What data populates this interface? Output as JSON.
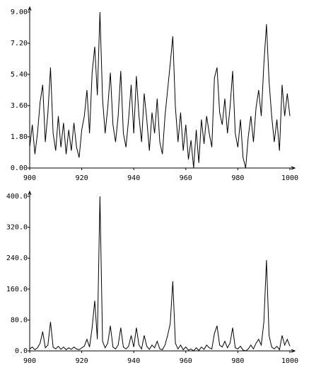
{
  "chart_data": [
    {
      "type": "line",
      "color": "#000000",
      "x": [
        900,
        901,
        902,
        903,
        904,
        905,
        906,
        907,
        908,
        909,
        910,
        911,
        912,
        913,
        914,
        915,
        916,
        917,
        918,
        919,
        920,
        921,
        922,
        923,
        924,
        925,
        926,
        927,
        928,
        929,
        930,
        931,
        932,
        933,
        934,
        935,
        936,
        937,
        938,
        939,
        940,
        941,
        942,
        943,
        944,
        945,
        946,
        947,
        948,
        949,
        950,
        951,
        952,
        953,
        954,
        955,
        956,
        957,
        958,
        959,
        960,
        961,
        962,
        963,
        964,
        965,
        966,
        967,
        968,
        969,
        970,
        971,
        972,
        973,
        974,
        975,
        976,
        977,
        978,
        979,
        980,
        981,
        982,
        983,
        984,
        985,
        986,
        987,
        988,
        989,
        990,
        991,
        992,
        993,
        994,
        995,
        996,
        997,
        998,
        999,
        1000
      ],
      "values": [
        1.2,
        2.5,
        0.8,
        2.0,
        3.8,
        4.8,
        1.5,
        3.2,
        5.8,
        2.0,
        1.0,
        3.0,
        1.2,
        2.6,
        0.8,
        2.2,
        1.0,
        2.6,
        1.2,
        0.6,
        2.2,
        3.0,
        4.5,
        2.0,
        5.5,
        7.0,
        4.2,
        9.0,
        4.0,
        2.0,
        3.5,
        5.5,
        2.5,
        1.5,
        3.0,
        5.6,
        2.0,
        1.2,
        2.8,
        4.8,
        2.0,
        5.3,
        3.0,
        1.5,
        4.3,
        2.8,
        1.0,
        3.2,
        2.0,
        4.0,
        1.5,
        0.8,
        3.0,
        4.5,
        6.0,
        7.6,
        3.5,
        1.5,
        3.2,
        1.0,
        2.5,
        0.5,
        1.6,
        0.0,
        2.2,
        0.3,
        2.8,
        1.4,
        3.0,
        2.0,
        1.2,
        5.2,
        5.8,
        3.2,
        2.5,
        4.0,
        2.0,
        3.5,
        5.6,
        2.0,
        1.2,
        2.8,
        0.6,
        0.0,
        1.8,
        3.0,
        1.5,
        3.5,
        4.5,
        3.0,
        6.0,
        8.3,
        5.0,
        3.0,
        1.5,
        2.8,
        1.0,
        4.8,
        3.0,
        4.3,
        3.0
      ],
      "xlim": [
        900,
        1000
      ],
      "xticks": [
        900,
        920,
        940,
        960,
        980,
        1000
      ],
      "ylim": [
        0,
        9
      ],
      "yticks": [
        {
          "value": 0,
          "label": "0.00"
        },
        {
          "value": 1.8,
          "label": "1.80"
        },
        {
          "value": 3.6,
          "label": "3.60"
        },
        {
          "value": 5.4,
          "label": "5.40"
        },
        {
          "value": 7.2,
          "label": "7.20"
        },
        {
          "value": 9,
          "label": "9.00"
        }
      ]
    },
    {
      "type": "line",
      "color": "#000000",
      "x": [
        900,
        901,
        902,
        903,
        904,
        905,
        906,
        907,
        908,
        909,
        910,
        911,
        912,
        913,
        914,
        915,
        916,
        917,
        918,
        919,
        920,
        921,
        922,
        923,
        924,
        925,
        926,
        927,
        928,
        929,
        930,
        931,
        932,
        933,
        934,
        935,
        936,
        937,
        938,
        939,
        940,
        941,
        942,
        943,
        944,
        945,
        946,
        947,
        948,
        949,
        950,
        951,
        952,
        953,
        954,
        955,
        956,
        957,
        958,
        959,
        960,
        961,
        962,
        963,
        964,
        965,
        966,
        967,
        968,
        969,
        970,
        971,
        972,
        973,
        974,
        975,
        976,
        977,
        978,
        979,
        980,
        981,
        982,
        983,
        984,
        985,
        986,
        987,
        988,
        989,
        990,
        991,
        992,
        993,
        994,
        995,
        996,
        997,
        998,
        999,
        1000
      ],
      "values": [
        5,
        10,
        3,
        8,
        20,
        50,
        8,
        15,
        75,
        10,
        5,
        12,
        4,
        10,
        3,
        8,
        4,
        10,
        5,
        3,
        8,
        12,
        30,
        10,
        60,
        130,
        30,
        400,
        25,
        8,
        20,
        65,
        10,
        5,
        15,
        60,
        10,
        5,
        12,
        40,
        10,
        60,
        15,
        5,
        40,
        12,
        4,
        15,
        8,
        25,
        5,
        3,
        15,
        40,
        70,
        180,
        20,
        5,
        15,
        3,
        10,
        2,
        5,
        0,
        8,
        1,
        10,
        4,
        15,
        8,
        5,
        45,
        65,
        15,
        10,
        25,
        8,
        20,
        60,
        8,
        5,
        12,
        2,
        0,
        5,
        15,
        5,
        20,
        30,
        15,
        75,
        235,
        40,
        10,
        5,
        12,
        3,
        40,
        15,
        30,
        12
      ],
      "xlim": [
        900,
        1000
      ],
      "xticks": [
        900,
        920,
        940,
        960,
        980,
        1000
      ],
      "ylim": [
        0,
        400
      ],
      "yticks": [
        {
          "value": 0,
          "label": "0.0"
        },
        {
          "value": 80,
          "label": "80.0"
        },
        {
          "value": 160,
          "label": "160.0"
        },
        {
          "value": 240,
          "label": "240.0"
        },
        {
          "value": 320,
          "label": "320.0"
        },
        {
          "value": 400,
          "label": "400.0"
        }
      ]
    }
  ]
}
